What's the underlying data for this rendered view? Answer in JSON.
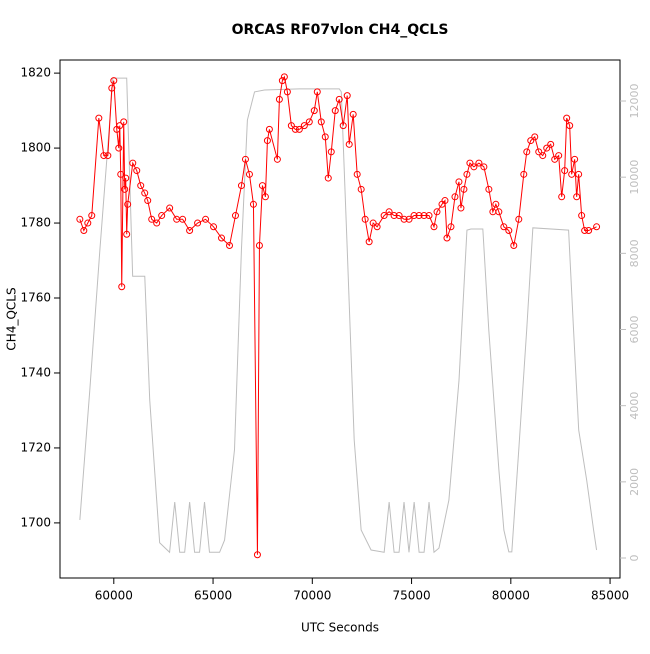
{
  "chart_data": {
    "type": "line",
    "title": "ORCAS RF07vlon CH4_QCLS",
    "xlabel": "UTC Seconds",
    "ylabel": "CH4_QCLS",
    "xlim": [
      57290,
      85500
    ],
    "ylim": [
      1685.3,
      1823.5
    ],
    "y2lim": [
      -525,
      13077
    ],
    "xticks": [
      60000,
      65000,
      70000,
      75000,
      80000,
      85000
    ],
    "yticks": [
      1700,
      1720,
      1740,
      1760,
      1780,
      1800,
      1820
    ],
    "y2ticks": [
      0,
      2000,
      4000,
      6000,
      8000,
      10000,
      12000
    ],
    "series": [
      {
        "color": "#ff0000",
        "marker": "circle",
        "x": [
          58290,
          58490,
          58690,
          58890,
          59246,
          59497,
          59700,
          59900,
          60000,
          60150,
          60250,
          60300,
          60350,
          60400,
          60500,
          60550,
          60600,
          60650,
          60700,
          60955,
          61156,
          61357,
          61558,
          61709,
          61910,
          62161,
          62412,
          62814,
          63166,
          63467,
          63819,
          64221,
          64623,
          65025,
          65427,
          65829,
          66130,
          66432,
          66633,
          66834,
          67035,
          67236,
          67337,
          67487,
          67638,
          67739,
          67839,
          68241,
          68342,
          68492,
          68593,
          68744,
          68945,
          69146,
          69347,
          69598,
          69849,
          70100,
          70251,
          70452,
          70653,
          70804,
          70955,
          71156,
          71357,
          71558,
          71759,
          71859,
          72060,
          72261,
          72462,
          72663,
          72864,
          73065,
          73266,
          73618,
          73869,
          74120,
          74372,
          74623,
          74874,
          75125,
          75377,
          75628,
          75879,
          76130,
          76281,
          76532,
          76683,
          76784,
          76985,
          77186,
          77387,
          77487,
          77638,
          77789,
          77940,
          78140,
          78392,
          78643,
          78894,
          79095,
          79246,
          79397,
          79648,
          79899,
          80150,
          80402,
          80653,
          80804,
          81005,
          81206,
          81407,
          81608,
          81809,
          82010,
          82211,
          82412,
          82562,
          82713,
          82814,
          82965,
          83065,
          83216,
          83317,
          83417,
          83568,
          83719,
          83920,
          84320
        ],
        "values": [
          1781,
          1778,
          1780,
          1782,
          1808,
          1798,
          1798,
          1816,
          1818,
          1805,
          1800,
          1806,
          1793,
          1763,
          1807,
          1789,
          1792,
          1777,
          1785,
          1796,
          1794,
          1790,
          1788,
          1786,
          1781,
          1780,
          1782,
          1784,
          1781,
          1781,
          1778,
          1780,
          1781,
          1779,
          1776,
          1774,
          1782,
          1790,
          1797,
          1793,
          1785,
          1691.5,
          1774,
          1790,
          1787,
          1802,
          1805,
          1797,
          1813,
          1818,
          1819,
          1815,
          1806,
          1805,
          1805,
          1806,
          1807,
          1810,
          1815,
          1807,
          1803,
          1792,
          1799,
          1810,
          1813,
          1806,
          1814,
          1801,
          1809,
          1793,
          1789,
          1781,
          1775,
          1780,
          1779,
          1782,
          1783,
          1782,
          1782,
          1781,
          1781,
          1782,
          1782,
          1782,
          1782,
          1779,
          1783,
          1785,
          1786,
          1776,
          1779,
          1787,
          1791,
          1784,
          1789,
          1793,
          1796,
          1795,
          1796,
          1795,
          1789,
          1783,
          1785,
          1783,
          1779,
          1778,
          1774,
          1781,
          1793,
          1799,
          1802,
          1803,
          1799,
          1798,
          1800,
          1801,
          1797,
          1798,
          1787,
          1794,
          1808,
          1806,
          1793,
          1797,
          1787,
          1793,
          1782,
          1778,
          1778,
          1779
        ]
      },
      {
        "color": "#bebebe",
        "axis": "y2",
        "x": [
          58290,
          58790,
          59300,
          59800,
          59950,
          60650,
          60950,
          61560,
          61810,
          62310,
          62810,
          63070,
          63320,
          63570,
          63820,
          64070,
          64320,
          64570,
          64820,
          65330,
          65580,
          66080,
          66430,
          66730,
          67090,
          67590,
          69350,
          71360,
          71460,
          71760,
          72110,
          72460,
          72960,
          73620,
          73870,
          74120,
          74370,
          74620,
          74870,
          75130,
          75380,
          75630,
          75880,
          76130,
          76380,
          76880,
          77390,
          77790,
          77990,
          78590,
          78890,
          79400,
          79650,
          79900,
          80050,
          80400,
          80800,
          81110,
          82910,
          83160,
          83420,
          83820,
          84170,
          84320
        ],
        "values": [
          1000,
          4400,
          8100,
          11500,
          12600,
          12600,
          7400,
          7400,
          4150,
          400,
          150,
          1470,
          150,
          150,
          1470,
          150,
          150,
          1470,
          150,
          150,
          470,
          2840,
          8100,
          11500,
          12240,
          12290,
          12320,
          12320,
          12240,
          8100,
          3100,
          735,
          210,
          150,
          1470,
          150,
          150,
          1470,
          150,
          1470,
          150,
          150,
          1470,
          150,
          260,
          1520,
          4670,
          8610,
          8640,
          8640,
          5990,
          2310,
          735,
          160,
          160,
          2840,
          5990,
          8670,
          8610,
          5990,
          3360,
          2050,
          735,
          210
        ]
      }
    ]
  }
}
